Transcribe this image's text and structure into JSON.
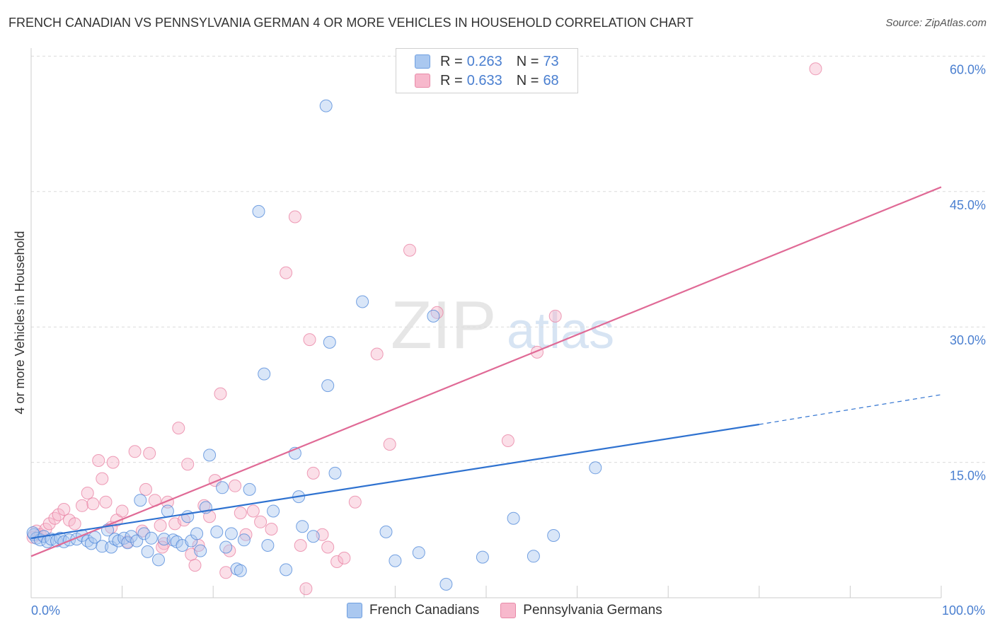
{
  "title": "FRENCH CANADIAN VS PENNSYLVANIA GERMAN 4 OR MORE VEHICLES IN HOUSEHOLD CORRELATION CHART",
  "source": "Source: ZipAtlas.com",
  "watermark": {
    "zip": "ZIP",
    "atlas": "atlas"
  },
  "legend": {
    "rows": [
      {
        "r_label": "R =",
        "r_value": "0.263",
        "n_label": "N =",
        "n_value": "73",
        "color": "#aac8f0"
      },
      {
        "r_label": "R =",
        "r_value": "0.633",
        "n_label": "N =",
        "n_value": "68",
        "color": "#f7b8cc"
      }
    ]
  },
  "bottom_legend": [
    {
      "label": "French Canadians",
      "color": "#aac8f0"
    },
    {
      "label": "Pennsylvania Germans",
      "color": "#f7b8cc"
    }
  ],
  "chart_data": {
    "type": "scatter",
    "ylabel": "4 or more Vehicles in Household",
    "x_tick_labels": [
      "0.0%",
      "100.0%"
    ],
    "y_tick_labels": [
      "15.0%",
      "30.0%",
      "45.0%",
      "60.0%"
    ],
    "y_ticks": [
      15,
      30,
      45,
      60
    ],
    "xlim": [
      0,
      100
    ],
    "ylim": [
      0,
      62
    ],
    "grid": true,
    "legend_position": "top-center",
    "series": [
      {
        "name": "French Canadians",
        "color": "#4a84d8",
        "fill": "#aac8f0",
        "trend": {
          "x0": 0,
          "y0": 6.6,
          "x1": 80,
          "y1": 19.2,
          "dashed_to_x": 100,
          "dashed_to_y": 22.5,
          "color": "#2f72d0"
        },
        "points": [
          [
            0.3,
            7.0
          ],
          [
            0.6,
            6.6
          ],
          [
            1.0,
            6.4
          ],
          [
            1.4,
            6.8
          ],
          [
            1.8,
            6.2
          ],
          [
            2.2,
            6.5
          ],
          [
            2.8,
            6.3
          ],
          [
            3.2,
            6.6
          ],
          [
            3.6,
            6.2
          ],
          [
            4.2,
            6.4
          ],
          [
            5.0,
            6.5
          ],
          [
            5.6,
            6.9
          ],
          [
            6.2,
            6.3
          ],
          [
            6.6,
            6.0
          ],
          [
            7.0,
            6.7
          ],
          [
            7.8,
            5.7
          ],
          [
            8.4,
            7.5
          ],
          [
            8.8,
            5.6
          ],
          [
            9.2,
            6.5
          ],
          [
            9.6,
            6.3
          ],
          [
            10.2,
            6.6
          ],
          [
            10.6,
            6.1
          ],
          [
            11.0,
            6.8
          ],
          [
            11.6,
            6.3
          ],
          [
            12.0,
            10.8
          ],
          [
            12.4,
            7.1
          ],
          [
            12.8,
            5.1
          ],
          [
            13.2,
            6.6
          ],
          [
            14.0,
            4.2
          ],
          [
            14.6,
            6.5
          ],
          [
            15.0,
            9.6
          ],
          [
            15.6,
            6.4
          ],
          [
            16.0,
            6.2
          ],
          [
            16.6,
            5.8
          ],
          [
            17.2,
            9.0
          ],
          [
            17.6,
            6.3
          ],
          [
            18.2,
            7.1
          ],
          [
            18.6,
            5.2
          ],
          [
            19.2,
            10.0
          ],
          [
            19.6,
            15.8
          ],
          [
            20.4,
            7.3
          ],
          [
            21.0,
            12.2
          ],
          [
            21.4,
            5.6
          ],
          [
            22.0,
            7.1
          ],
          [
            22.6,
            3.2
          ],
          [
            23.0,
            3.0
          ],
          [
            23.4,
            6.4
          ],
          [
            24.0,
            12.0
          ],
          [
            25.0,
            42.8
          ],
          [
            25.6,
            24.8
          ],
          [
            26.0,
            5.8
          ],
          [
            26.6,
            9.6
          ],
          [
            28.0,
            3.1
          ],
          [
            29.0,
            16.0
          ],
          [
            29.4,
            11.2
          ],
          [
            29.8,
            7.9
          ],
          [
            31.0,
            6.8
          ],
          [
            32.4,
            54.5
          ],
          [
            32.6,
            23.5
          ],
          [
            32.8,
            28.3
          ],
          [
            33.4,
            13.8
          ],
          [
            36.4,
            32.8
          ],
          [
            39.0,
            7.3
          ],
          [
            40.0,
            4.1
          ],
          [
            42.6,
            5.0
          ],
          [
            44.2,
            31.2
          ],
          [
            45.6,
            1.5
          ],
          [
            49.6,
            4.5
          ],
          [
            53.0,
            8.8
          ],
          [
            55.2,
            4.6
          ],
          [
            57.4,
            6.9
          ],
          [
            62.0,
            14.4
          ],
          [
            0.2,
            7.2
          ]
        ]
      },
      {
        "name": "Pennsylvania Germans",
        "color": "#e87ea0",
        "fill": "#f7b8cc",
        "trend": {
          "x0": 0,
          "y0": 4.6,
          "x1": 100,
          "y1": 45.5,
          "color": "#e06a96"
        },
        "points": [
          [
            0.2,
            6.7
          ],
          [
            0.6,
            7.4
          ],
          [
            1.0,
            7.0
          ],
          [
            1.6,
            7.6
          ],
          [
            2.0,
            8.2
          ],
          [
            2.6,
            8.8
          ],
          [
            3.0,
            9.2
          ],
          [
            3.6,
            9.8
          ],
          [
            4.2,
            8.6
          ],
          [
            4.8,
            8.2
          ],
          [
            5.6,
            10.2
          ],
          [
            6.2,
            11.6
          ],
          [
            6.8,
            10.4
          ],
          [
            7.4,
            15.2
          ],
          [
            7.8,
            13.2
          ],
          [
            8.2,
            10.6
          ],
          [
            8.8,
            7.8
          ],
          [
            9.4,
            8.6
          ],
          [
            10.0,
            9.6
          ],
          [
            10.6,
            6.2
          ],
          [
            11.4,
            16.2
          ],
          [
            12.2,
            7.4
          ],
          [
            12.6,
            12.0
          ],
          [
            13.0,
            16.0
          ],
          [
            13.6,
            10.8
          ],
          [
            14.2,
            8.0
          ],
          [
            14.6,
            6.0
          ],
          [
            15.0,
            10.6
          ],
          [
            15.8,
            8.2
          ],
          [
            16.2,
            18.8
          ],
          [
            16.8,
            8.6
          ],
          [
            17.2,
            14.8
          ],
          [
            17.6,
            4.8
          ],
          [
            18.0,
            3.6
          ],
          [
            18.4,
            5.8
          ],
          [
            19.0,
            10.2
          ],
          [
            19.6,
            9.0
          ],
          [
            20.2,
            13.0
          ],
          [
            20.8,
            22.6
          ],
          [
            21.4,
            2.8
          ],
          [
            21.8,
            5.2
          ],
          [
            22.4,
            12.4
          ],
          [
            23.0,
            9.4
          ],
          [
            23.6,
            7.0
          ],
          [
            24.4,
            9.6
          ],
          [
            25.2,
            8.4
          ],
          [
            26.4,
            7.6
          ],
          [
            28.0,
            36.0
          ],
          [
            29.0,
            42.2
          ],
          [
            29.6,
            5.8
          ],
          [
            30.2,
            1.0
          ],
          [
            30.6,
            28.6
          ],
          [
            31.0,
            13.8
          ],
          [
            32.0,
            7.0
          ],
          [
            32.6,
            5.6
          ],
          [
            33.6,
            4.0
          ],
          [
            34.4,
            4.4
          ],
          [
            35.6,
            10.6
          ],
          [
            38.0,
            27.0
          ],
          [
            39.4,
            17.0
          ],
          [
            41.6,
            38.5
          ],
          [
            44.6,
            31.6
          ],
          [
            52.4,
            17.4
          ],
          [
            55.6,
            27.2
          ],
          [
            57.6,
            31.2
          ],
          [
            86.2,
            58.6
          ],
          [
            14.4,
            5.6
          ],
          [
            9.0,
            15.0
          ]
        ]
      }
    ]
  }
}
